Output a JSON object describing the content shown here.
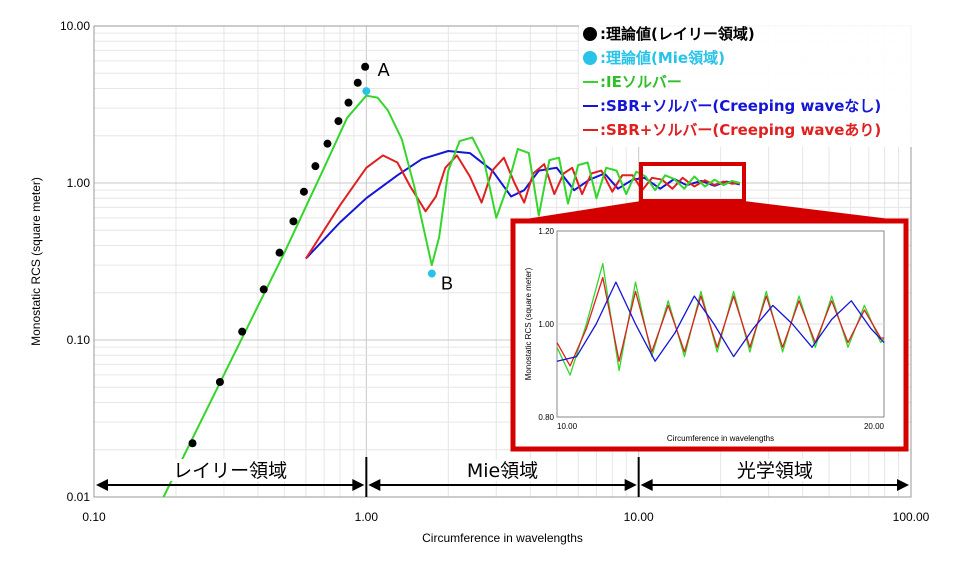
{
  "chart_data": {
    "type": "line",
    "xscale": "log",
    "yscale": "log",
    "xlim": [
      0.1,
      100
    ],
    "ylim": [
      0.01,
      10
    ],
    "xlabel": "Circumference in wavelengths",
    "ylabel": "Monostatic RCS (square meter)",
    "x_tick_labels": [
      "0.10",
      "1.00",
      "10.00",
      "100.00"
    ],
    "y_tick_labels": [
      "0.01",
      "0.10",
      "1.00",
      "10.00"
    ],
    "grid": true,
    "legend_placement": "top-right",
    "legend": [
      {
        "marker": "●",
        "label": ":理論値(レイリー領域)",
        "color": "#000000"
      },
      {
        "marker": "●",
        "label": ":理論値(Mie領域)",
        "color": "#29c3e8"
      },
      {
        "marker": "—",
        "label": ":IEソルバー",
        "color": "#35d62c"
      },
      {
        "marker": "—",
        "label": ":SBR+ソルバー(Creeping waveなし)",
        "color": "#1515d6"
      },
      {
        "marker": "—",
        "label": ":SBR+ソルバー(Creeping waveあり)",
        "color": "#e02020"
      }
    ],
    "series": [
      {
        "name": ":理論値(レイリー領域)",
        "kind": "points",
        "color": "#000000",
        "x": [
          0.23,
          0.29,
          0.35,
          0.42,
          0.48,
          0.54,
          0.59,
          0.65,
          0.72,
          0.79,
          0.86,
          0.93,
          0.99
        ],
        "y": [
          0.022,
          0.054,
          0.113,
          0.21,
          0.36,
          0.57,
          0.88,
          1.28,
          1.78,
          2.48,
          3.25,
          4.35,
          5.5
        ]
      },
      {
        "name": ":理論値(Mie領域)",
        "kind": "points",
        "color": "#29c3e8",
        "x": [
          1.0,
          1.74
        ],
        "y": [
          3.85,
          0.265
        ]
      },
      {
        "name": ":IEソルバー",
        "kind": "line",
        "color": "#35d62c",
        "x": [
          0.18,
          0.3,
          0.5,
          0.7,
          0.85,
          1.0,
          1.1,
          1.2,
          1.35,
          1.5,
          1.65,
          1.74,
          1.85,
          2.0,
          2.2,
          2.45,
          2.7,
          3.0,
          3.3,
          3.6,
          3.95,
          4.3,
          4.7,
          5.1,
          5.5,
          6.0,
          6.5,
          7.0,
          7.6,
          8.3,
          9.0,
          9.8,
          10.6,
          11.5,
          12.5,
          13.5,
          14.7,
          16.0,
          17.5,
          19.0,
          20.5,
          22.0,
          23.5
        ],
        "y": [
          0.01,
          0.06,
          0.36,
          1.25,
          2.6,
          3.6,
          3.5,
          2.9,
          1.9,
          0.95,
          0.45,
          0.3,
          0.45,
          1.2,
          1.85,
          1.95,
          1.4,
          0.6,
          0.95,
          1.65,
          1.55,
          0.62,
          1.4,
          1.45,
          0.74,
          1.3,
          1.35,
          0.8,
          1.25,
          1.2,
          0.85,
          1.18,
          1.1,
          0.9,
          1.12,
          1.06,
          0.92,
          1.1,
          0.95,
          1.05,
          0.97,
          1.03,
          1.0
        ]
      },
      {
        "name": ":SBR+ソルバー(Creeping waveなし)",
        "kind": "line",
        "color": "#1515d6",
        "x": [
          0.6,
          0.8,
          1.0,
          1.3,
          1.6,
          2.0,
          2.4,
          2.9,
          3.4,
          3.8,
          4.3,
          5.0,
          5.8,
          6.6,
          7.5,
          8.4,
          9.5,
          10.5,
          12.0,
          13.5,
          15.0,
          17.0,
          19.0,
          21.0,
          23.5
        ],
        "y": [
          0.33,
          0.56,
          0.8,
          1.12,
          1.42,
          1.6,
          1.55,
          1.2,
          0.82,
          0.9,
          1.2,
          1.25,
          0.9,
          1.05,
          1.15,
          0.92,
          1.05,
          1.08,
          0.92,
          1.06,
          0.97,
          1.03,
          0.96,
          1.02,
          0.98
        ]
      },
      {
        "name": ":SBR+ソルバー(Creeping waveあり)",
        "kind": "line",
        "color": "#e02020",
        "x": [
          0.6,
          0.8,
          1.0,
          1.15,
          1.3,
          1.45,
          1.65,
          1.8,
          1.95,
          2.15,
          2.4,
          2.65,
          2.9,
          3.2,
          3.5,
          3.8,
          4.1,
          4.5,
          4.9,
          5.3,
          5.7,
          6.2,
          6.7,
          7.3,
          8.0,
          8.7,
          9.5,
          10.3,
          11.2,
          12.2,
          13.3,
          14.5,
          16.0,
          17.5,
          19.0,
          20.5,
          22.0,
          23.5
        ],
        "y": [
          0.33,
          0.72,
          1.25,
          1.5,
          1.35,
          0.95,
          0.66,
          0.82,
          1.25,
          1.5,
          1.1,
          0.75,
          1.2,
          1.45,
          1.0,
          0.75,
          1.15,
          1.32,
          0.85,
          1.15,
          1.25,
          0.85,
          1.15,
          1.2,
          0.88,
          1.12,
          1.12,
          0.9,
          1.08,
          1.05,
          0.92,
          1.08,
          0.95,
          1.04,
          0.97,
          1.02,
          0.99,
          1.0
        ]
      }
    ],
    "annotations": [
      {
        "text": "A",
        "x": 1.1,
        "y": 4.8
      },
      {
        "text": "B",
        "x": 1.88,
        "y": 0.21
      }
    ],
    "regions": [
      {
        "label": "レイリー領域",
        "from": 0.1,
        "to": 1.0
      },
      {
        "label": "Mie領域",
        "from": 1.0,
        "to": 10.0
      },
      {
        "label": "光学領域",
        "from": 10.0,
        "to": 100.0
      }
    ],
    "inset": {
      "type": "line",
      "xlim": [
        10,
        20
      ],
      "ylim": [
        0.8,
        1.2
      ],
      "x_tick_labels": [
        "10.00",
        "20.00"
      ],
      "y_tick_labels": [
        "0.80",
        "1.00",
        "1.20"
      ],
      "xlabel": "Circumference in wavelengths",
      "ylabel": "Monostatic RCS (square meter)",
      "series": [
        {
          "name": ":IEソルバー",
          "color": "#35d62c",
          "x": [
            10.0,
            10.4,
            10.9,
            11.4,
            11.9,
            12.4,
            12.9,
            13.4,
            13.9,
            14.4,
            14.9,
            15.4,
            15.9,
            16.4,
            16.9,
            17.4,
            17.9,
            18.4,
            18.9,
            19.4,
            19.9,
            20.0
          ],
          "y": [
            0.95,
            0.89,
            1.0,
            1.13,
            0.9,
            1.09,
            0.93,
            1.05,
            0.93,
            1.07,
            0.94,
            1.07,
            0.94,
            1.07,
            0.94,
            1.06,
            0.95,
            1.06,
            0.95,
            1.04,
            0.96,
            0.97
          ]
        },
        {
          "name": ":SBR+ソルバー(Creeping waveあり)",
          "color": "#e02020",
          "x": [
            10.0,
            10.4,
            10.9,
            11.4,
            11.9,
            12.4,
            12.9,
            13.4,
            13.9,
            14.4,
            14.9,
            15.4,
            15.9,
            16.4,
            16.9,
            17.4,
            17.9,
            18.4,
            18.9,
            19.4,
            19.9,
            20.0
          ],
          "y": [
            0.96,
            0.91,
            0.99,
            1.1,
            0.92,
            1.07,
            0.94,
            1.04,
            0.94,
            1.06,
            0.95,
            1.06,
            0.95,
            1.06,
            0.95,
            1.05,
            0.96,
            1.05,
            0.96,
            1.03,
            0.97,
            0.97
          ]
        },
        {
          "name": ":SBR+ソルバー(Creeping waveなし)",
          "color": "#1515d6",
          "x": [
            10.0,
            10.6,
            11.2,
            11.8,
            12.4,
            13.0,
            13.6,
            14.2,
            14.8,
            15.4,
            16.0,
            16.6,
            17.2,
            17.8,
            18.4,
            19.0,
            19.6,
            20.0
          ],
          "y": [
            0.92,
            0.93,
            1.0,
            1.09,
            1.0,
            0.92,
            0.98,
            1.06,
            1.0,
            0.93,
            0.99,
            1.04,
            1.0,
            0.95,
            1.01,
            1.05,
            0.99,
            0.96
          ]
        }
      ]
    }
  }
}
